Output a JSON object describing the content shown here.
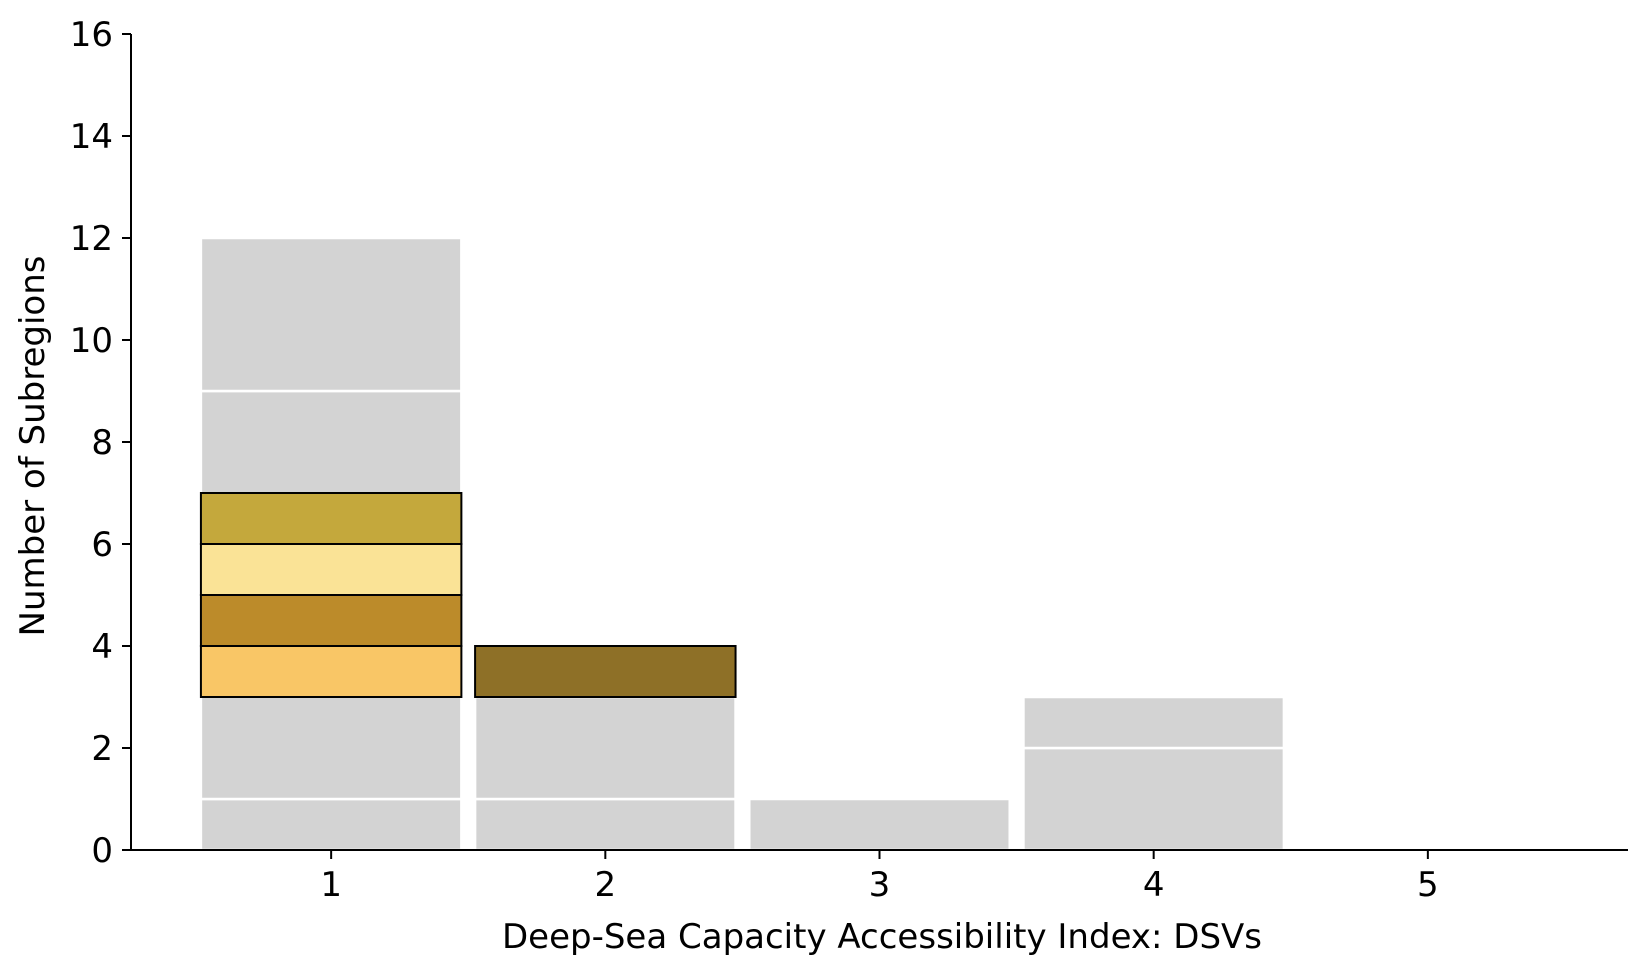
{
  "chart_data": {
    "type": "bar",
    "title": "",
    "xlabel": "Deep-Sea Capacity Accessibility Index: DSVs",
    "ylabel": "Number of Subregions",
    "categories": [
      1,
      2,
      3,
      4,
      5
    ],
    "xlim": [
      0.27,
      5.73
    ],
    "ylim": [
      0,
      16
    ],
    "yticks": [
      0,
      2,
      4,
      6,
      8,
      10,
      12,
      14,
      16
    ],
    "grid": false,
    "legend": "none",
    "background_stacks": [
      {
        "x": 1,
        "segments": [
          [
            0,
            1
          ],
          [
            1,
            9
          ],
          [
            9,
            12
          ]
        ]
      },
      {
        "x": 2,
        "segments": [
          [
            0,
            1
          ],
          [
            1,
            3
          ]
        ]
      },
      {
        "x": 3,
        "segments": [
          [
            0,
            1
          ]
        ]
      },
      {
        "x": 4,
        "segments": [
          [
            0,
            2
          ],
          [
            2,
            3
          ]
        ]
      }
    ],
    "highlighted": [
      {
        "x": 1,
        "y0": 3,
        "y1": 4,
        "color": "#f9c666"
      },
      {
        "x": 1,
        "y0": 4,
        "y1": 5,
        "color": "#bc8b2a"
      },
      {
        "x": 1,
        "y0": 5,
        "y1": 6,
        "color": "#fae396"
      },
      {
        "x": 1,
        "y0": 6,
        "y1": 7,
        "color": "#c4a83c"
      },
      {
        "x": 2,
        "y0": 3,
        "y1": 4,
        "color": "#8e7027"
      }
    ],
    "colors": {
      "background": "#d3d3d3",
      "separator": "#ffffff",
      "edge": "#000000"
    }
  }
}
